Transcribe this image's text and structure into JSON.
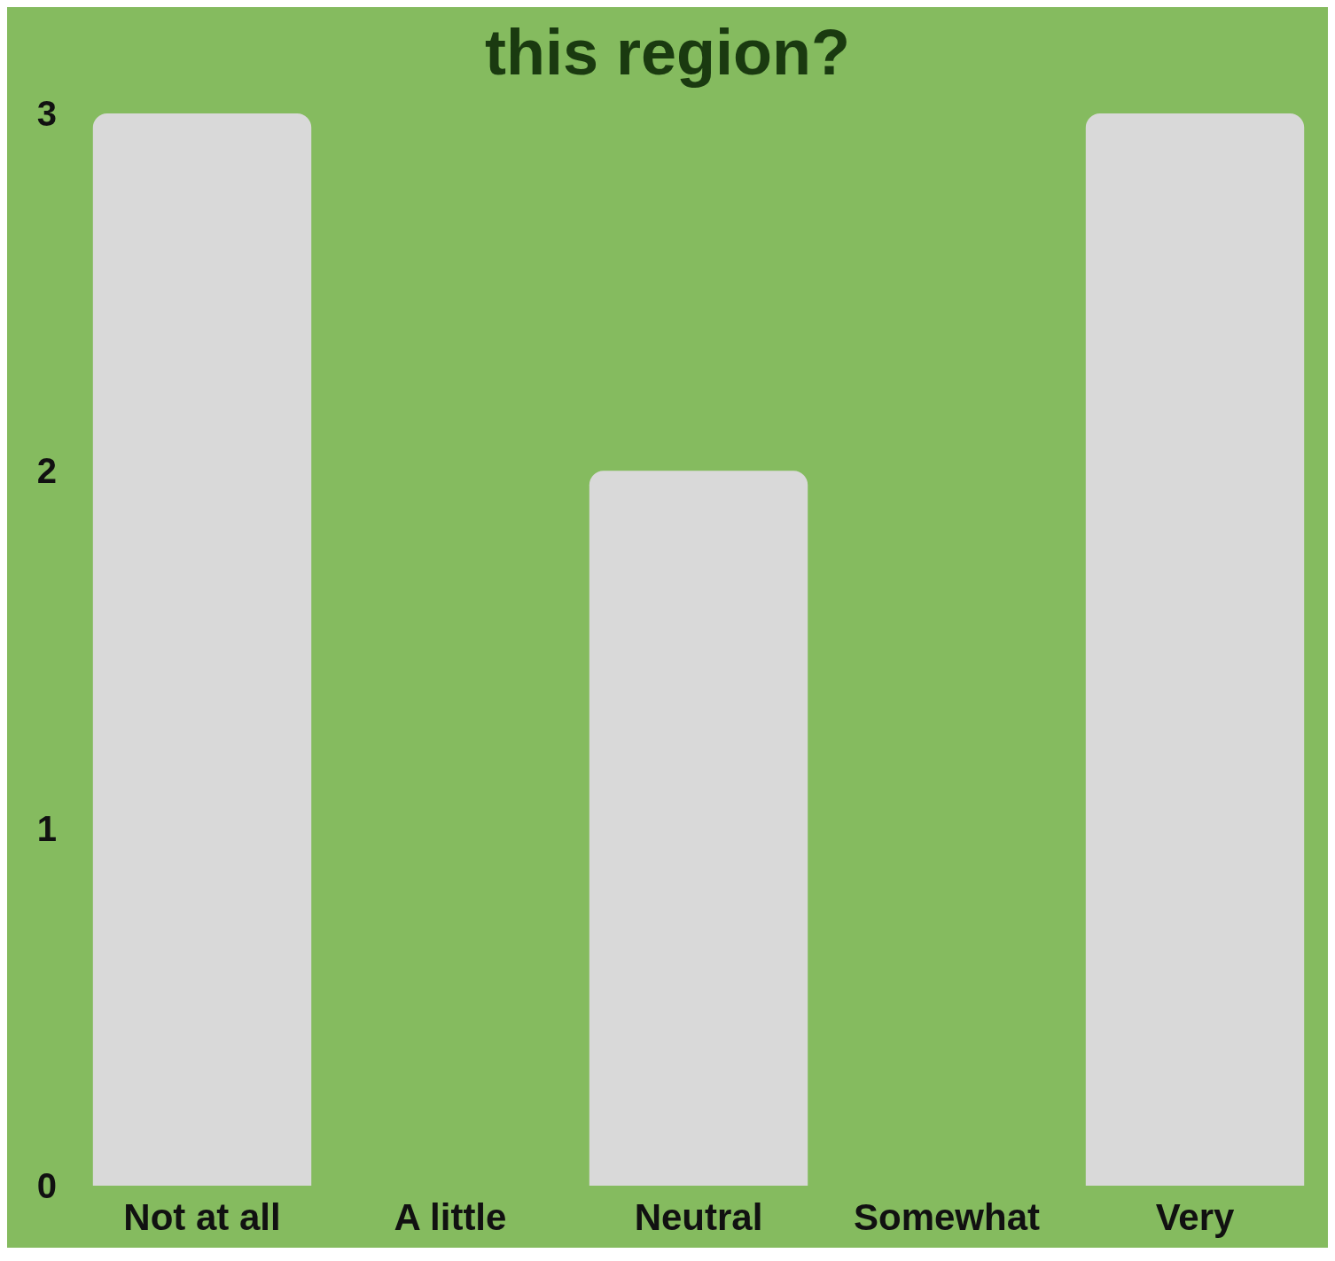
{
  "chart_data": {
    "type": "bar",
    "title": "this region?",
    "categories": [
      "Not at all",
      "A little",
      "Neutral",
      "Somewhat",
      "Very"
    ],
    "values": [
      3,
      0,
      2,
      0,
      3
    ],
    "color": "#d9d9d9",
    "ylim": [
      0,
      3
    ],
    "yticks": [
      0,
      1,
      2,
      3
    ],
    "grid": false
  }
}
